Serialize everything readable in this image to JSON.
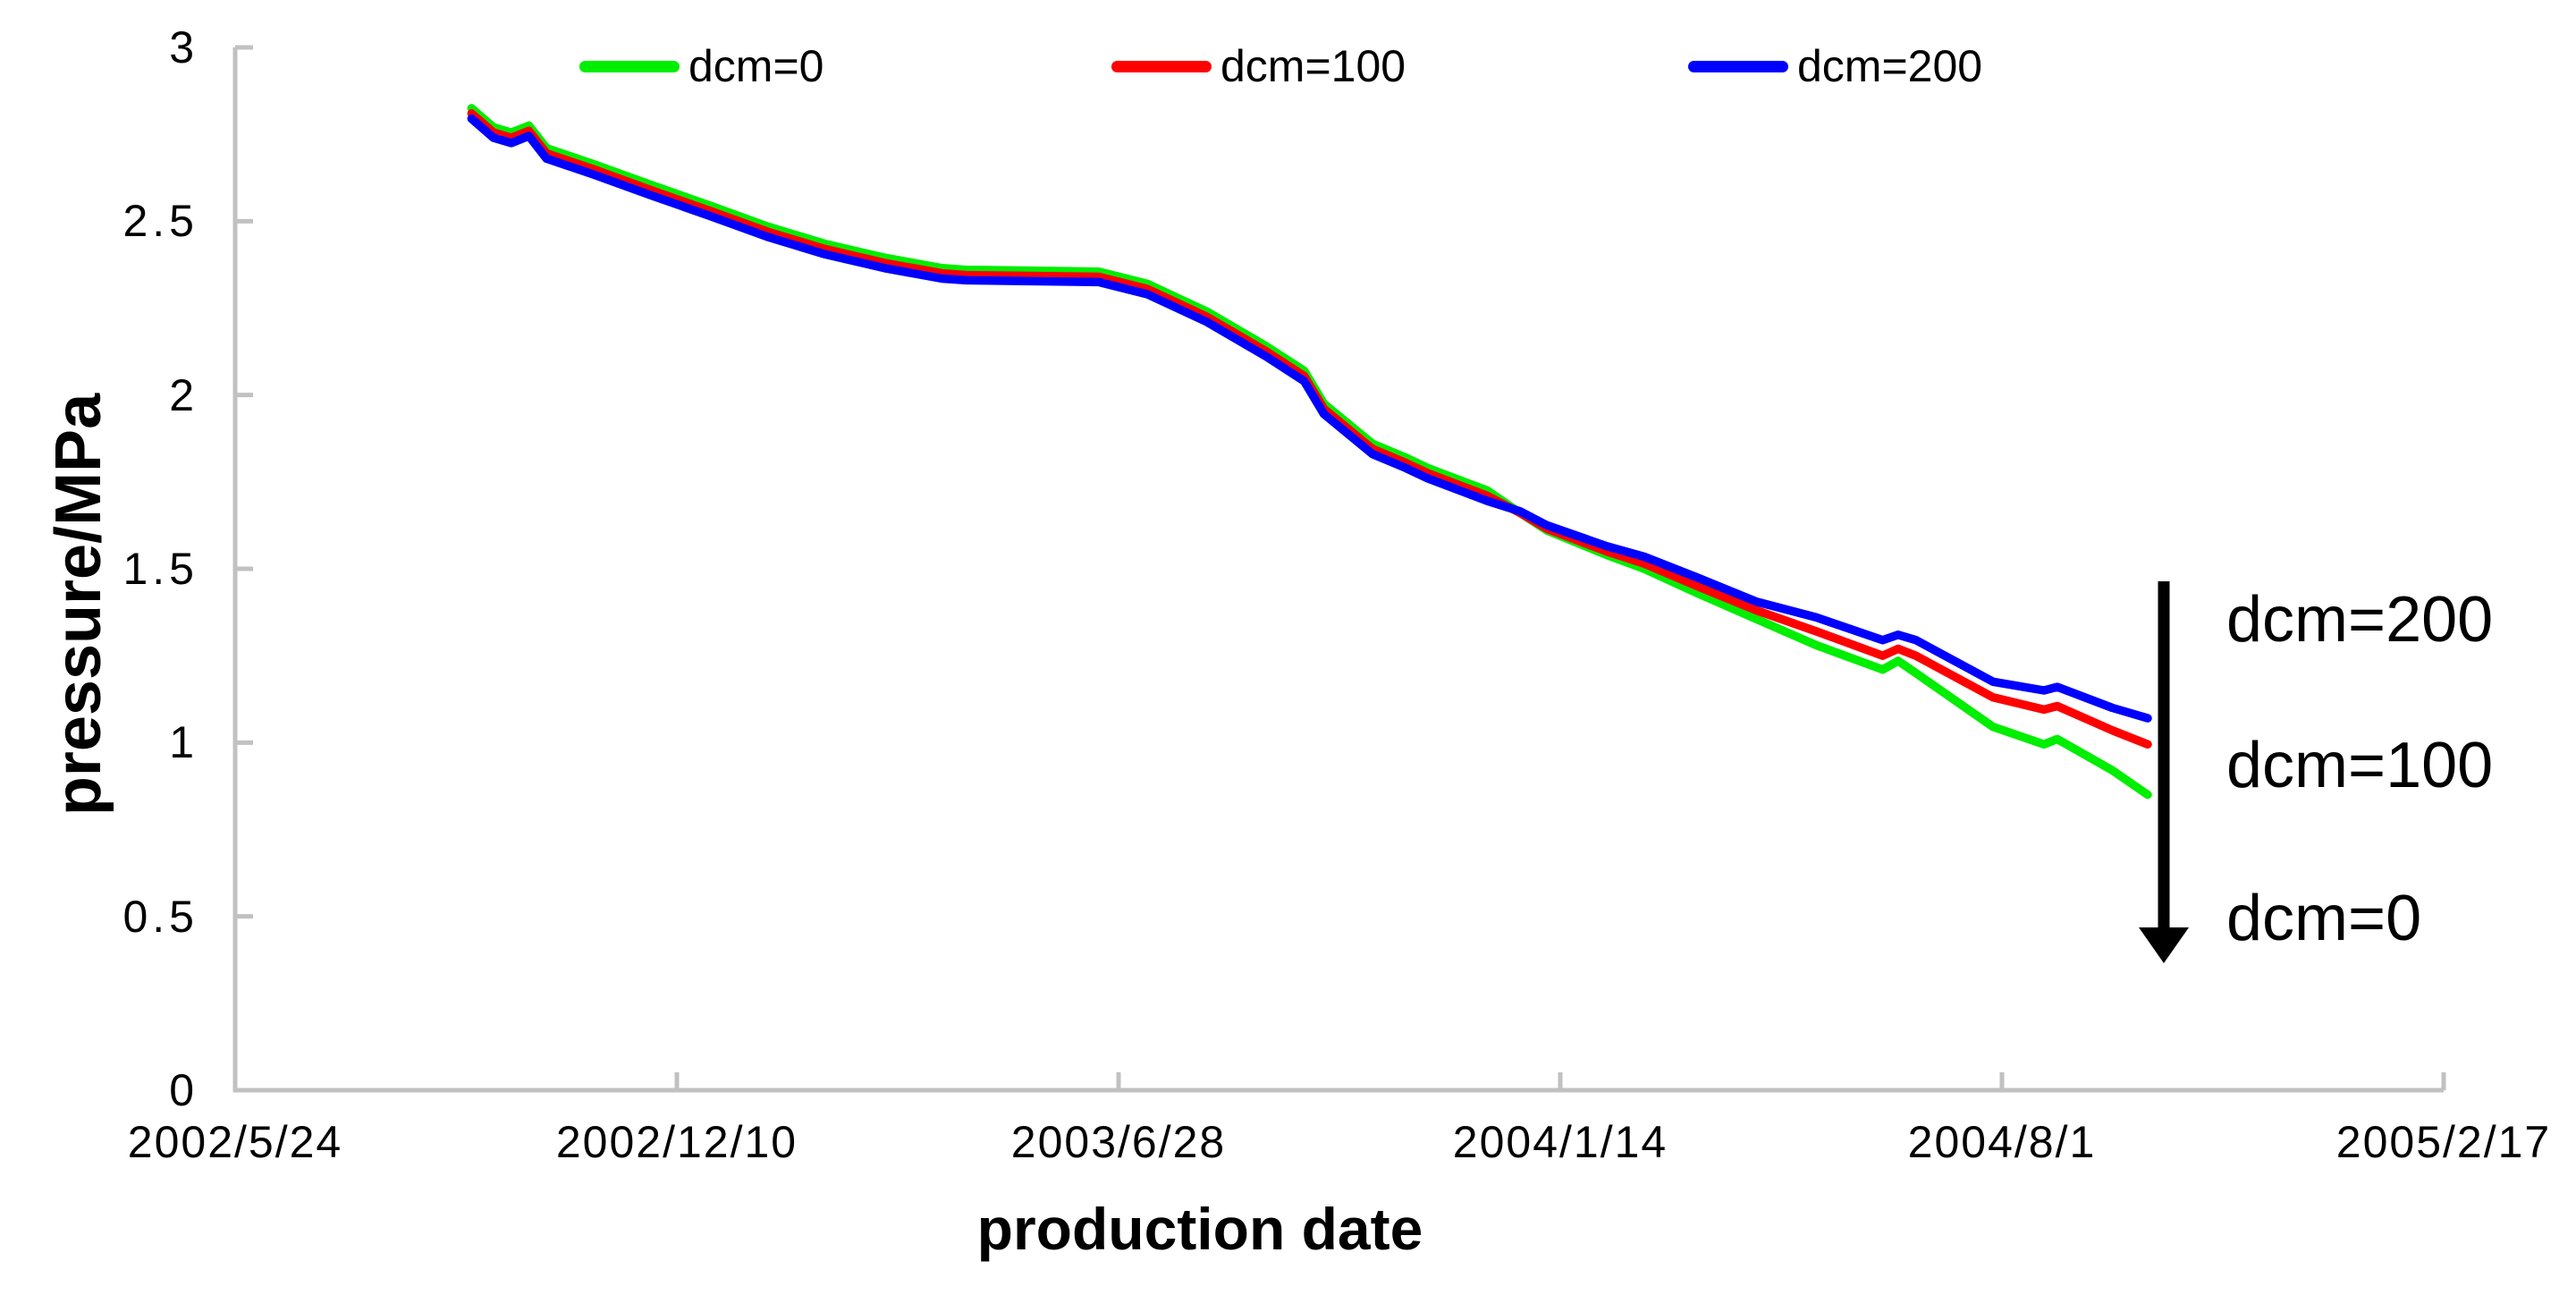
{
  "chart_data": {
    "type": "line",
    "title": "",
    "xlabel": "production date",
    "ylabel": "pressure/MPa",
    "x_tick_labels": [
      "2002/5/24",
      "2002/12/10",
      "2003/6/28",
      "2004/1/14",
      "2004/8/1",
      "2005/2/17"
    ],
    "x_tick_interval_days": 200,
    "y_ticks": [
      "0",
      "0.5",
      "1",
      "1.5",
      "2",
      "2.5",
      "3"
    ],
    "ylim": [
      0,
      3
    ],
    "grid": false,
    "legend_position": "top",
    "axis_color": "#c1c1c1",
    "text_color": "#000000",
    "series": [
      {
        "name": "dcm=0",
        "color": "#00ee00",
        "points": [
          [
            "2002/9/8",
            2.825
          ],
          [
            "2002/9/18",
            2.77
          ],
          [
            "2002/9/26",
            2.755
          ],
          [
            "2002/10/4",
            2.775
          ],
          [
            "2002/10/12",
            2.71
          ],
          [
            "2002/11/2",
            2.665
          ],
          [
            "2002/11/28",
            2.605
          ],
          [
            "2002/12/25",
            2.545
          ],
          [
            "2003/1/20",
            2.485
          ],
          [
            "2003/2/15",
            2.435
          ],
          [
            "2003/3/14",
            2.395
          ],
          [
            "2003/4/9",
            2.365
          ],
          [
            "2003/4/20",
            2.36
          ],
          [
            "2003/6/19",
            2.355
          ],
          [
            "2003/7/11",
            2.32
          ],
          [
            "2003/8/7",
            2.24
          ],
          [
            "2003/9/3",
            2.14
          ],
          [
            "2003/9/20",
            2.07
          ],
          [
            "2003/9/29",
            1.975
          ],
          [
            "2003/10/21",
            1.86
          ],
          [
            "2003/11/5",
            1.82
          ],
          [
            "2003/11/15",
            1.79
          ],
          [
            "2003/12/12",
            1.725
          ],
          [
            "2003/12/27",
            1.66
          ],
          [
            "2004/1/8",
            1.61
          ],
          [
            "2004/2/4",
            1.54
          ],
          [
            "2004/2/21",
            1.5
          ],
          [
            "2004/3/16",
            1.43
          ],
          [
            "2004/4/12",
            1.355
          ],
          [
            "2004/5/9",
            1.28
          ],
          [
            "2004/6/8",
            1.21
          ],
          [
            "2004/6/15",
            1.235
          ],
          [
            "2004/6/23",
            1.2
          ],
          [
            "2004/7/28",
            1.045
          ],
          [
            "2004/8/20",
            0.995
          ],
          [
            "2004/8/26",
            1.01
          ],
          [
            "2004/9/20",
            0.92
          ],
          [
            "2004/10/6",
            0.85
          ]
        ]
      },
      {
        "name": "dcm=100",
        "color": "#ff0000",
        "points": [
          [
            "2002/9/8",
            2.81
          ],
          [
            "2002/9/18",
            2.755
          ],
          [
            "2002/9/26",
            2.74
          ],
          [
            "2002/10/4",
            2.76
          ],
          [
            "2002/10/12",
            2.695
          ],
          [
            "2002/11/2",
            2.65
          ],
          [
            "2002/11/28",
            2.59
          ],
          [
            "2002/12/25",
            2.53
          ],
          [
            "2003/1/20",
            2.47
          ],
          [
            "2003/2/15",
            2.42
          ],
          [
            "2003/3/14",
            2.38
          ],
          [
            "2003/4/9",
            2.35
          ],
          [
            "2003/4/20",
            2.345
          ],
          [
            "2003/6/19",
            2.34
          ],
          [
            "2003/7/11",
            2.305
          ],
          [
            "2003/8/7",
            2.225
          ],
          [
            "2003/9/3",
            2.125
          ],
          [
            "2003/9/20",
            2.055
          ],
          [
            "2003/9/29",
            1.96
          ],
          [
            "2003/10/21",
            1.845
          ],
          [
            "2003/11/5",
            1.805
          ],
          [
            "2003/11/15",
            1.775
          ],
          [
            "2003/12/12",
            1.71
          ],
          [
            "2003/12/27",
            1.66
          ],
          [
            "2004/1/8",
            1.615
          ],
          [
            "2004/2/4",
            1.55
          ],
          [
            "2004/2/21",
            1.515
          ],
          [
            "2004/3/16",
            1.45
          ],
          [
            "2004/4/12",
            1.38
          ],
          [
            "2004/5/9",
            1.32
          ],
          [
            "2004/6/8",
            1.25
          ],
          [
            "2004/6/15",
            1.27
          ],
          [
            "2004/6/23",
            1.25
          ],
          [
            "2004/7/28",
            1.13
          ],
          [
            "2004/8/20",
            1.095
          ],
          [
            "2004/8/26",
            1.105
          ],
          [
            "2004/9/20",
            1.035
          ],
          [
            "2004/10/6",
            0.995
          ]
        ]
      },
      {
        "name": "dcm=200",
        "color": "#0000ff",
        "points": [
          [
            "2002/9/8",
            2.795
          ],
          [
            "2002/9/18",
            2.74
          ],
          [
            "2002/9/26",
            2.725
          ],
          [
            "2002/10/4",
            2.745
          ],
          [
            "2002/10/12",
            2.68
          ],
          [
            "2002/11/2",
            2.635
          ],
          [
            "2002/11/28",
            2.575
          ],
          [
            "2002/12/25",
            2.515
          ],
          [
            "2003/1/20",
            2.455
          ],
          [
            "2003/2/15",
            2.405
          ],
          [
            "2003/3/14",
            2.365
          ],
          [
            "2003/4/9",
            2.335
          ],
          [
            "2003/4/20",
            2.33
          ],
          [
            "2003/6/19",
            2.325
          ],
          [
            "2003/7/11",
            2.29
          ],
          [
            "2003/8/7",
            2.21
          ],
          [
            "2003/9/3",
            2.11
          ],
          [
            "2003/9/20",
            2.04
          ],
          [
            "2003/9/29",
            1.945
          ],
          [
            "2003/10/21",
            1.83
          ],
          [
            "2003/11/5",
            1.79
          ],
          [
            "2003/11/15",
            1.76
          ],
          [
            "2003/12/12",
            1.695
          ],
          [
            "2003/12/27",
            1.665
          ],
          [
            "2004/1/8",
            1.625
          ],
          [
            "2004/2/4",
            1.565
          ],
          [
            "2004/2/21",
            1.535
          ],
          [
            "2004/3/16",
            1.475
          ],
          [
            "2004/4/12",
            1.405
          ],
          [
            "2004/5/9",
            1.36
          ],
          [
            "2004/6/8",
            1.295
          ],
          [
            "2004/6/15",
            1.31
          ],
          [
            "2004/6/23",
            1.295
          ],
          [
            "2004/7/28",
            1.175
          ],
          [
            "2004/8/20",
            1.15
          ],
          [
            "2004/8/26",
            1.16
          ],
          [
            "2004/9/20",
            1.1
          ],
          [
            "2004/10/6",
            1.07
          ]
        ]
      }
    ]
  },
  "annotations": {
    "labels": [
      "dcm=200",
      "dcm=100",
      "dcm=0"
    ],
    "arrow_direction": "down",
    "arrow_color": "#000000"
  }
}
